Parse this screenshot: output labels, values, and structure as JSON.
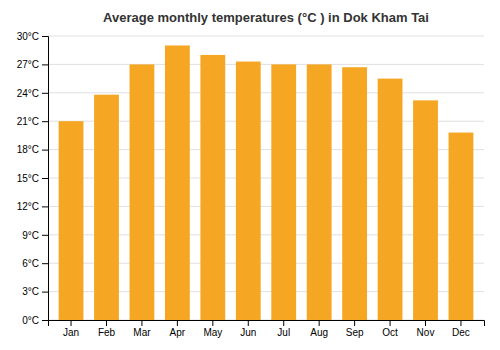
{
  "chart_data": {
    "type": "bar",
    "title": "Average monthly temperatures (°C ) in Dok Kham Tai",
    "categories": [
      "Jan",
      "Feb",
      "Mar",
      "Apr",
      "May",
      "Jun",
      "Jul",
      "Aug",
      "Sep",
      "Oct",
      "Nov",
      "Dec"
    ],
    "values": [
      21.0,
      23.8,
      27.0,
      29.0,
      28.0,
      27.3,
      27.0,
      27.0,
      26.7,
      25.5,
      23.2,
      19.8
    ],
    "color": "#F5A623",
    "ylim": [
      0,
      30
    ],
    "yticks": [
      {
        "value": 0,
        "label": "0°C"
      },
      {
        "value": 3,
        "label": "3°C"
      },
      {
        "value": 6,
        "label": "6°C"
      },
      {
        "value": 9,
        "label": "9°C"
      },
      {
        "value": 12,
        "label": "12°C"
      },
      {
        "value": 15,
        "label": "15°C"
      },
      {
        "value": 18,
        "label": "18°C"
      },
      {
        "value": 21,
        "label": "21°C"
      },
      {
        "value": 24,
        "label": "24°C"
      },
      {
        "value": 27,
        "label": "27°C"
      },
      {
        "value": 30,
        "label": "30°C"
      }
    ],
    "grid": true
  }
}
